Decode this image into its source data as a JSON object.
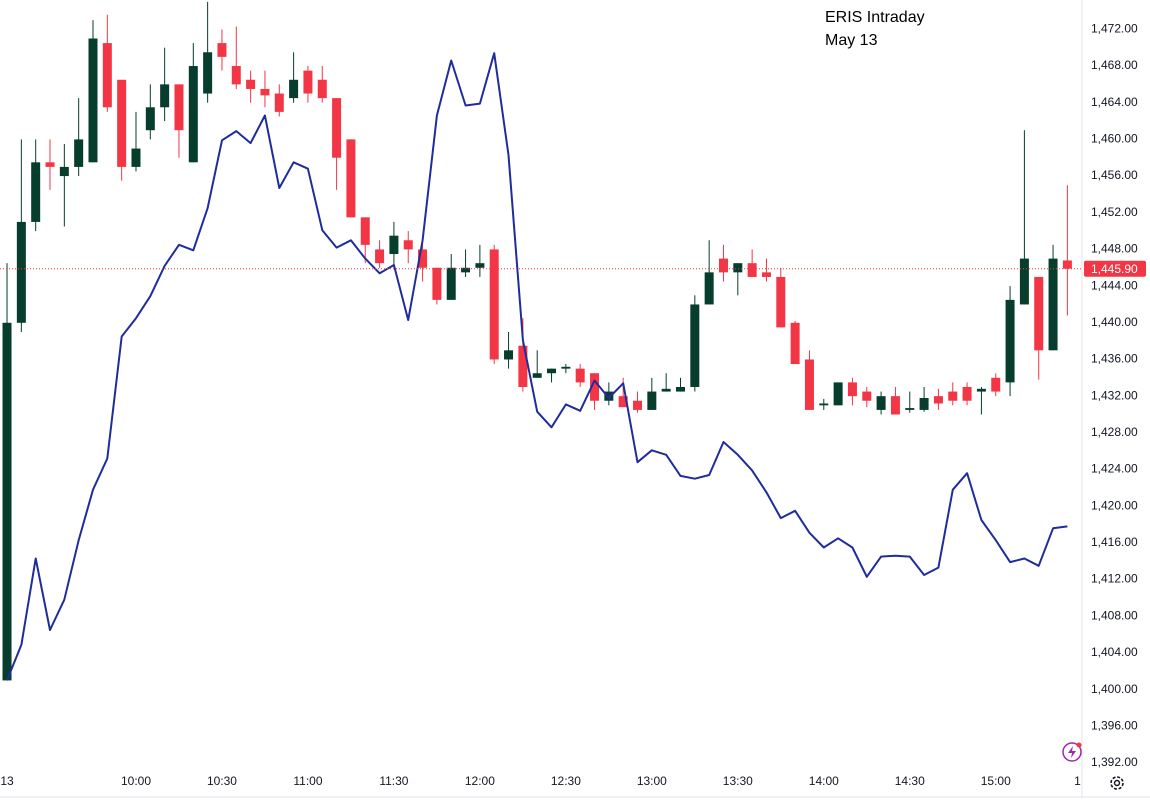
{
  "chart_data": {
    "type": "candlestick",
    "title": "ERIS Intraday",
    "subtitle": "May 13",
    "up_color": "#063d2d",
    "down_color": "#f23645",
    "grid": false,
    "xlim": [
      -0.49,
      75.02
    ],
    "xticks": [
      {
        "value": 0,
        "label": "13"
      },
      {
        "value": 9,
        "label": "10:00"
      },
      {
        "value": 15,
        "label": "10:30"
      },
      {
        "value": 21,
        "label": "11:00"
      },
      {
        "value": 27,
        "label": "11:30"
      },
      {
        "value": 33,
        "label": "12:00"
      },
      {
        "value": 39,
        "label": "12:30"
      },
      {
        "value": 45,
        "label": "13:00"
      },
      {
        "value": 51,
        "label": "13:30"
      },
      {
        "value": 57,
        "label": "14:00"
      },
      {
        "value": 63,
        "label": "14:30"
      },
      {
        "value": 69,
        "label": "15:00"
      },
      {
        "value": 74.7,
        "label": "1"
      }
    ],
    "ylim": [
      1391.2,
      1475.2
    ],
    "yticks": [
      {
        "value": 1392,
        "label": "1,392.00"
      },
      {
        "value": 1396,
        "label": "1,396.00"
      },
      {
        "value": 1400,
        "label": "1,400.00"
      },
      {
        "value": 1404,
        "label": "1,404.00"
      },
      {
        "value": 1408,
        "label": "1,408.00"
      },
      {
        "value": 1412,
        "label": "1,412.00"
      },
      {
        "value": 1416,
        "label": "1,416.00"
      },
      {
        "value": 1420,
        "label": "1,420.00"
      },
      {
        "value": 1424,
        "label": "1,424.00"
      },
      {
        "value": 1428,
        "label": "1,428.00"
      },
      {
        "value": 1432,
        "label": "1,432.00"
      },
      {
        "value": 1436,
        "label": "1,436.00"
      },
      {
        "value": 1440,
        "label": "1,440.00"
      },
      {
        "value": 1444,
        "label": "1,444.00"
      },
      {
        "value": 1448,
        "label": "1,448.00"
      },
      {
        "value": 1452,
        "label": "1,452.00"
      },
      {
        "value": 1456,
        "label": "1,456.00"
      },
      {
        "value": 1460,
        "label": "1,460.00"
      },
      {
        "value": 1464,
        "label": "1,464.00"
      },
      {
        "value": 1468,
        "label": "1,468.00"
      },
      {
        "value": 1472,
        "label": "1,472.00"
      }
    ],
    "last_price": {
      "value": 1445.9,
      "label": "1,445.90"
    },
    "last_price_color": "#f23645",
    "candles": {
      "open": [
        1401,
        1440,
        1451,
        1457.5,
        1456,
        1457,
        1457.5,
        1470.5,
        1466.5,
        1457,
        1461,
        1463.5,
        1466,
        1457.5,
        1465,
        1470.5,
        1468,
        1466.5,
        1465.5,
        1465,
        1464.5,
        1467.5,
        1466.5,
        1464.5,
        1460,
        1451.5,
        1448,
        1447.5,
        1449,
        1448,
        1446,
        1442.5,
        1445.5,
        1446,
        1448,
        1436,
        1437.5,
        1434,
        1434.5,
        1435,
        1435,
        1434.5,
        1431.5,
        1432,
        1431.5,
        1430.5,
        1432.5,
        1432.5,
        1433,
        1442,
        1447,
        1445.5,
        1446.5,
        1445.5,
        1445,
        1440,
        1436,
        1431,
        1431,
        1433.5,
        1432.5,
        1430.5,
        1432,
        1430.5,
        1430.5,
        1432,
        1432.5,
        1433,
        1432.5,
        1434,
        1433.5,
        1442,
        1445,
        1437,
        1446.8
      ],
      "high": [
        1446.5,
        1460,
        1460,
        1460,
        1459.5,
        1464.5,
        1473,
        1473.6,
        1466.5,
        1463,
        1466,
        1470,
        1466,
        1470.5,
        1475,
        1472,
        1472.3,
        1467.5,
        1467.5,
        1466,
        1469.5,
        1468,
        1468,
        1464.5,
        1460,
        1451.5,
        1449,
        1451,
        1450,
        1449,
        1446,
        1447.5,
        1448,
        1448.5,
        1448.5,
        1439,
        1440.5,
        1437,
        1435,
        1435.5,
        1435.5,
        1434.5,
        1433.5,
        1434,
        1432.5,
        1434,
        1434.5,
        1434,
        1443,
        1449,
        1448.5,
        1446.5,
        1448,
        1447,
        1446,
        1440.2,
        1437,
        1431.7,
        1433.5,
        1434,
        1433,
        1432.5,
        1433,
        1432.5,
        1433,
        1432.8,
        1433.5,
        1433.5,
        1433,
        1434.5,
        1444,
        1461,
        1445,
        1448.5,
        1455
      ],
      "low": [
        1401,
        1439,
        1450,
        1454.5,
        1450.5,
        1456,
        1457.5,
        1463,
        1455.5,
        1456.5,
        1460,
        1462,
        1458,
        1457.5,
        1464,
        1467.5,
        1465.5,
        1464,
        1463.5,
        1462.5,
        1464,
        1464,
        1464,
        1454.5,
        1451.5,
        1446.5,
        1446,
        1446,
        1446.5,
        1444.5,
        1442,
        1442.5,
        1445,
        1445,
        1435.5,
        1435,
        1432.5,
        1434,
        1433.5,
        1434.5,
        1433,
        1430.5,
        1431,
        1431,
        1430.2,
        1430.5,
        1432.5,
        1432.5,
        1432.5,
        1442,
        1444.5,
        1443,
        1445,
        1444.5,
        1439.5,
        1435.5,
        1430.5,
        1430.5,
        1431,
        1431,
        1430.8,
        1430,
        1430,
        1430.2,
        1430.3,
        1430.5,
        1431,
        1431,
        1430,
        1432,
        1432,
        1442,
        1433.8,
        1437,
        1440.8
      ],
      "close": [
        1440,
        1451,
        1457.5,
        1457,
        1457,
        1460,
        1471,
        1463.5,
        1457,
        1459,
        1463.5,
        1466,
        1461,
        1468,
        1469.5,
        1469,
        1466,
        1465.5,
        1464.8,
        1463,
        1466.5,
        1465,
        1464.5,
        1458,
        1451.5,
        1448.5,
        1446.5,
        1449.5,
        1448,
        1446,
        1442.5,
        1446,
        1446,
        1446.5,
        1436,
        1437,
        1433,
        1434.5,
        1435,
        1435.2,
        1433.5,
        1431.5,
        1432.5,
        1430.8,
        1430.5,
        1432.5,
        1432.8,
        1433,
        1442,
        1445.5,
        1445.5,
        1446.5,
        1445,
        1445,
        1439.5,
        1435.5,
        1430.5,
        1431.2,
        1433.5,
        1432,
        1431.5,
        1432,
        1430,
        1430.7,
        1431.8,
        1431.2,
        1431.5,
        1431.5,
        1432.8,
        1432.5,
        1442.5,
        1447,
        1437,
        1447,
        1445.9
      ]
    },
    "line": {
      "color": "#1f2d9c",
      "values": [
        1401,
        1404.9,
        1414.3,
        1406.5,
        1409.8,
        1416.3,
        1421.8,
        1425.2,
        1438.5,
        1440.5,
        1442.9,
        1446.2,
        1448.5,
        1447.9,
        1452.5,
        1459.9,
        1460.9,
        1459.6,
        1462.6,
        1454.7,
        1457.5,
        1456.8,
        1450.1,
        1448.2,
        1449,
        1447,
        1445.4,
        1446.3,
        1440.3,
        1449,
        1462.6,
        1468.6,
        1463.7,
        1463.9,
        1469.4,
        1458.3,
        1438.1,
        1430.3,
        1428.6,
        1431.1,
        1430.4,
        1433.7,
        1431.8,
        1433.4,
        1424.8,
        1426.1,
        1425.6,
        1423.3,
        1423,
        1423.4,
        1427,
        1425.6,
        1423.9,
        1421.5,
        1418.7,
        1419.5,
        1417.1,
        1415.5,
        1416.5,
        1415.5,
        1412.3,
        1414.5,
        1414.6,
        1414.5,
        1412.5,
        1413.3,
        1421.8,
        1423.6,
        1418.5,
        1416.3,
        1413.9,
        1414.3,
        1413.5,
        1417.6,
        1417.8
      ]
    }
  }
}
